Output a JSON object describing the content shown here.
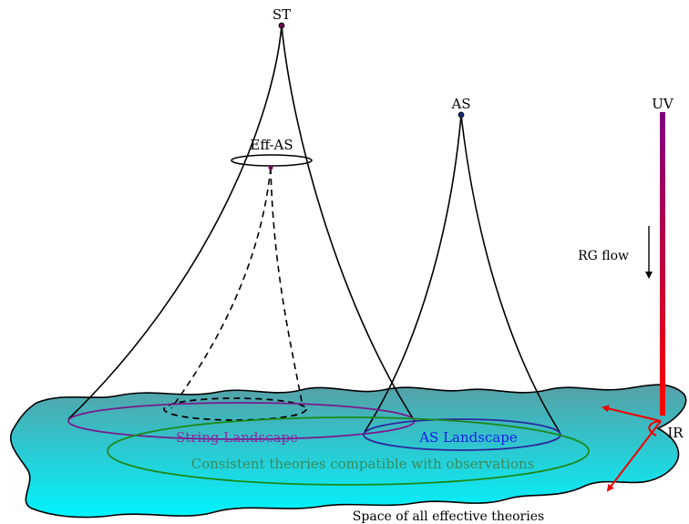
{
  "labels": {
    "st": "ST",
    "eff_as": "Eff-AS",
    "as": "AS",
    "uv": "UV",
    "ir": "IR",
    "rg_flow": "RG flow",
    "string_landscape": "String Landscape",
    "as_landscape": "AS Landscape",
    "consistent": "Consistent theories compatible with observations",
    "space": "Space of all effective theories"
  },
  "colors": {
    "landscape_top": "#57a0a6",
    "landscape_bottom": "#00f4ff",
    "string_ellipse": "#7a1a8e",
    "as_ellipse": "#2a2a9c",
    "consistent_ellipse": "#1a8a1a",
    "string_text": "#8a2aa0",
    "as_text": "#1a1aee",
    "consistent_text": "#3a8a5a",
    "uv_top": "#800080",
    "ir_bottom": "#ff0000",
    "arrow_red": "#ee0000",
    "apex_st": "#6a0a4a",
    "apex_as": "#1a2a7a"
  }
}
